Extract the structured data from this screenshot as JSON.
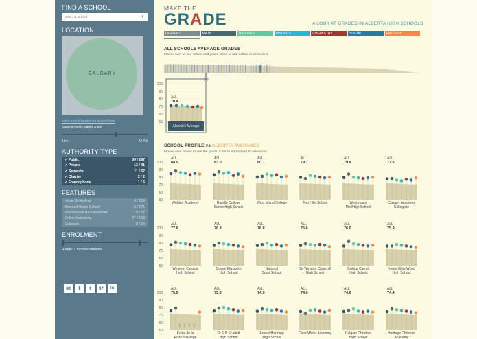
{
  "sidebar": {
    "find_title": "FIND A SCHOOL",
    "find_placeholder": "select a school",
    "location_title": "LOCATION",
    "map_city": "CALGARY",
    "map_link": "enter a new location to search from",
    "within_label": "Show schools within 20km",
    "slider_min": "1km",
    "slider_max": "All AB",
    "authority_title": "AUTHORITY TYPE",
    "authority": [
      {
        "label": "✓ Public",
        "count": "30 / 267"
      },
      {
        "label": "✓ Private",
        "count": "13 / 41"
      },
      {
        "label": "✓ Separate",
        "count": "11 / 67"
      },
      {
        "label": "✓ Charter",
        "count": "2 / 2"
      },
      {
        "label": "✓ Francophone",
        "count": "1 / 6"
      }
    ],
    "features_title": "FEATURES",
    "features": [
      {
        "label": "Home Schooling",
        "count": "4 / 124"
      },
      {
        "label": "Blended Home School",
        "count": "6 / 171"
      },
      {
        "label": "International Baccalaureate",
        "count": "9 / 27"
      },
      {
        "label": "Online Schooling",
        "count": "27 / 162"
      },
      {
        "label": "Outreach",
        "count": "0 / 24"
      }
    ],
    "enrolment_title": "ENROLMENT",
    "enrolment_range": "Range: 1 or more students",
    "social_icons": [
      "email-icon",
      "facebook-icon",
      "twitter-icon",
      "google-plus-icon",
      "linkedin-icon"
    ]
  },
  "header": {
    "make": "MAKE THE",
    "grade_pre": "GR",
    "grade_a": "A",
    "grade_post": "DE",
    "tagline": "A LOOK AT GRADES IN ALBERTA HIGH SCHOOLS"
  },
  "tabs": [
    {
      "label": "OVERALL",
      "color": "#7c8a90"
    },
    {
      "label": "MATH",
      "color": "#4f6878"
    },
    {
      "label": "BIOLOGY",
      "color": "#66c7a0"
    },
    {
      "label": "PHYSICS",
      "color": "#31b3d4"
    },
    {
      "label": "CHEMISTRY",
      "color": "#9c3b32"
    },
    {
      "label": "SOCIAL",
      "color": "#2b7aa6"
    },
    {
      "label": "ENGLISH",
      "color": "#f08c4a"
    }
  ],
  "overview": {
    "title": "ALL SCHOOLS AVERAGE GRADES",
    "subtitle": "Mouse over to see school and grade. Click to add school to selections.",
    "axis": [
      "100",
      "90",
      "80",
      "70",
      "60",
      "50"
    ],
    "avg_label": "ALL",
    "avg_value": "70.4",
    "avg_name": "Alberta's Average",
    "close_icon": "×"
  },
  "profile": {
    "title_a": "SCHOOL PROFILE vs ",
    "title_b": "ALBERTA AVERAGES",
    "subtitle": "Mouse over circles to see the grade. Click to add school to selections.",
    "axis": [
      "100",
      "90",
      "80",
      "70",
      "60",
      "50"
    ],
    "na": "N/A",
    "schools": [
      {
        "all": "ALL",
        "value": "84.5",
        "name1": "Webber Academy",
        "name2": ""
      },
      {
        "all": "ALL",
        "value": "83.0",
        "name1": "Rundle College",
        "name2": "Senior High School"
      },
      {
        "all": "ALL",
        "value": "80.1",
        "name1": "West Island College",
        "name2": ""
      },
      {
        "all": "ALL",
        "value": "79.7",
        "name1": "Two Hills School",
        "name2": ""
      },
      {
        "all": "ALL",
        "value": "79.4",
        "name1": "Westmount",
        "name2": "Mid/High School"
      },
      {
        "all": "ALL",
        "value": "77.6",
        "name1": "Calgary Academy",
        "name2": "Collegiate"
      },
      {
        "all": "ALL",
        "value": "77.6",
        "name1": "Western Canada",
        "name2": "High School"
      },
      {
        "all": "ALL",
        "value": "76.8",
        "name1": "Queen Elizabeth",
        "name2": "High School"
      },
      {
        "all": "ALL",
        "value": "76.6",
        "name1": "National",
        "name2": "Sport School"
      },
      {
        "all": "ALL",
        "value": "76.6",
        "name1": "Sir Winston Churchill",
        "name2": "High School"
      },
      {
        "all": "ALL",
        "value": "76.0",
        "name1": "Bishop Carroll",
        "name2": "High School"
      },
      {
        "all": "ALL",
        "value": "75.9",
        "name1": "Henry Wise Wood",
        "name2": "High School"
      },
      {
        "all": "ALL",
        "value": "75.5",
        "name1": "Ecole de la",
        "name2": "Rose Sauvage"
      },
      {
        "all": "ALL",
        "value": "75.3",
        "name1": "Dr E P Scarlett",
        "name2": "High School"
      },
      {
        "all": "ALL",
        "value": "74.9",
        "name1": "Ernest Manning",
        "name2": "High School"
      },
      {
        "all": "ALL",
        "value": "74.6",
        "name1": "Clear Water Academy",
        "name2": ""
      },
      {
        "all": "ALL",
        "value": "74.6",
        "name1": "Calgary Christian",
        "name2": "High School"
      },
      {
        "all": "ALL",
        "value": "74.4",
        "name1": "Heritage Christian",
        "name2": "Academy"
      }
    ]
  }
}
